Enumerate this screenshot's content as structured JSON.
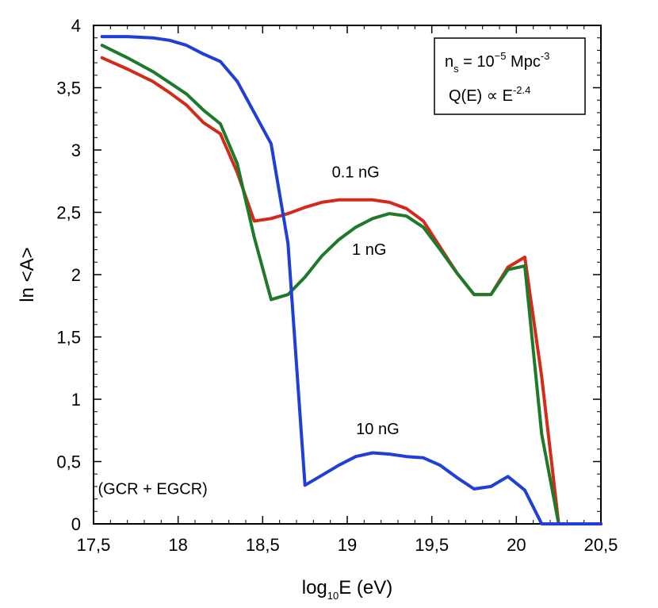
{
  "chart_data": {
    "type": "line",
    "title": "",
    "xlabel": {
      "prefix": "log",
      "sub": "10",
      "suffix": "E (eV)"
    },
    "ylabel": "ln <A>",
    "xlim": [
      17.5,
      20.5
    ],
    "ylim": [
      0,
      4
    ],
    "x_ticks": [
      {
        "value": 17.5,
        "label": "17,5"
      },
      {
        "value": 18,
        "label": "18"
      },
      {
        "value": 18.5,
        "label": "18,5"
      },
      {
        "value": 19,
        "label": "19"
      },
      {
        "value": 19.5,
        "label": "19,5"
      },
      {
        "value": 20,
        "label": "20"
      },
      {
        "value": 20.5,
        "label": "20,5"
      }
    ],
    "y_ticks": [
      {
        "value": 0,
        "label": "0"
      },
      {
        "value": 0.5,
        "label": "0,5"
      },
      {
        "value": 1,
        "label": "1"
      },
      {
        "value": 1.5,
        "label": "1,5"
      },
      {
        "value": 2,
        "label": "2"
      },
      {
        "value": 2.5,
        "label": "2,5"
      },
      {
        "value": 3,
        "label": "3"
      },
      {
        "value": 3.5,
        "label": "3,5"
      },
      {
        "value": 4,
        "label": "4"
      }
    ],
    "series": [
      {
        "name": "0.1 nG",
        "color": "#d42a1a",
        "x": [
          17.55,
          17.7,
          17.85,
          17.95,
          18.05,
          18.15,
          18.25,
          18.35,
          18.45,
          18.55,
          18.65,
          18.75,
          18.85,
          18.95,
          19.05,
          19.15,
          19.25,
          19.35,
          19.45,
          19.55,
          19.65,
          19.75,
          19.85,
          19.95,
          20.05,
          20.15,
          20.25,
          20.35,
          20.5
        ],
        "y": [
          3.74,
          3.65,
          3.55,
          3.46,
          3.36,
          3.22,
          3.13,
          2.82,
          2.43,
          2.45,
          2.49,
          2.54,
          2.58,
          2.6,
          2.6,
          2.6,
          2.58,
          2.53,
          2.43,
          2.22,
          2.01,
          1.84,
          1.84,
          2.06,
          2.14,
          1.18,
          0.0,
          0.0,
          0.0
        ]
      },
      {
        "name": "1 nG",
        "color": "#1e7a2a",
        "x": [
          17.55,
          17.7,
          17.85,
          17.95,
          18.05,
          18.15,
          18.25,
          18.35,
          18.45,
          18.55,
          18.65,
          18.75,
          18.85,
          18.95,
          19.05,
          19.15,
          19.25,
          19.35,
          19.45,
          19.55,
          19.65,
          19.75,
          19.85,
          19.95,
          20.05,
          20.15,
          20.25,
          20.35,
          20.5
        ],
        "y": [
          3.84,
          3.74,
          3.63,
          3.54,
          3.45,
          3.32,
          3.21,
          2.89,
          2.3,
          1.8,
          1.84,
          1.98,
          2.15,
          2.28,
          2.38,
          2.45,
          2.49,
          2.47,
          2.38,
          2.2,
          2.01,
          1.84,
          1.84,
          2.04,
          2.07,
          0.72,
          0.0,
          0.0,
          0.0
        ]
      },
      {
        "name": "10 nG",
        "color": "#1f3fd6",
        "x": [
          17.55,
          17.7,
          17.85,
          17.95,
          18.05,
          18.15,
          18.25,
          18.35,
          18.45,
          18.55,
          18.65,
          18.75,
          18.85,
          18.95,
          19.05,
          19.15,
          19.25,
          19.35,
          19.45,
          19.55,
          19.65,
          19.75,
          19.85,
          19.95,
          20.05,
          20.15,
          20.25,
          20.35,
          20.5
        ],
        "y": [
          3.91,
          3.91,
          3.9,
          3.88,
          3.84,
          3.77,
          3.71,
          3.55,
          3.3,
          3.05,
          2.25,
          0.31,
          0.39,
          0.47,
          0.54,
          0.57,
          0.56,
          0.54,
          0.53,
          0.47,
          0.37,
          0.28,
          0.3,
          0.38,
          0.27,
          0.0,
          0.0,
          0.0,
          0.0
        ]
      }
    ],
    "annotations": [
      {
        "text": "0.1 nG",
        "x": 19.05,
        "y": 2.78
      },
      {
        "text": "1 nG",
        "x": 19.13,
        "y": 2.16
      },
      {
        "text": "10 nG",
        "x": 19.18,
        "y": 0.72
      },
      {
        "text": "(GCR + EGCR)",
        "x": 17.85,
        "y": 0.24
      }
    ],
    "legend_box": {
      "position": "top-right",
      "line1": {
        "prefix": "n",
        "sub": "s",
        "mid": " = 10",
        "sup": "−5",
        "suffix": " Mpc",
        "sup2": "-3"
      },
      "line2": {
        "prefix": "Q(E) ∝ E",
        "sup": "-2.4"
      }
    }
  }
}
